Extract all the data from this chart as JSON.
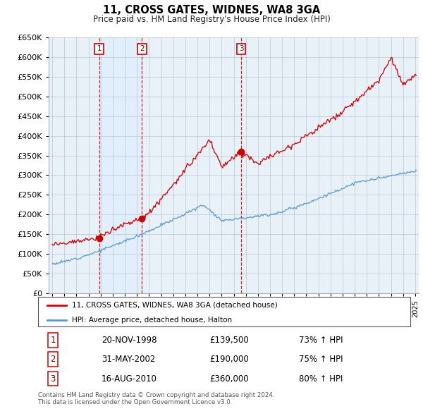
{
  "title": "11, CROSS GATES, WIDNES, WA8 3GA",
  "subtitle": "Price paid vs. HM Land Registry's House Price Index (HPI)",
  "legend_line1": "11, CROSS GATES, WIDNES, WA8 3GA (detached house)",
  "legend_line2": "HPI: Average price, detached house, Halton",
  "sale_dates": [
    "20-NOV-1998",
    "31-MAY-2002",
    "16-AUG-2010"
  ],
  "sale_prices": [
    139500,
    190000,
    360000
  ],
  "sale_hpi_pct": [
    "73% ↑ HPI",
    "75% ↑ HPI",
    "80% ↑ HPI"
  ],
  "footer": "Contains HM Land Registry data © Crown copyright and database right 2024.\nThis data is licensed under the Open Government Licence v3.0.",
  "house_color": "#cc0000",
  "hpi_color": "#5599cc",
  "sale_marker_color": "#cc0000",
  "shade_color": "#ddeeff",
  "ylim": [
    0,
    650000
  ],
  "yticks": [
    0,
    50000,
    100000,
    150000,
    200000,
    250000,
    300000,
    350000,
    400000,
    450000,
    500000,
    550000,
    600000,
    650000
  ],
  "bg_color": "#ffffff",
  "grid_color": "#cccccc",
  "sale_yrs": [
    1998.88,
    2002.42,
    2010.62
  ],
  "xlim_left": 1994.7,
  "xlim_right": 2025.3
}
